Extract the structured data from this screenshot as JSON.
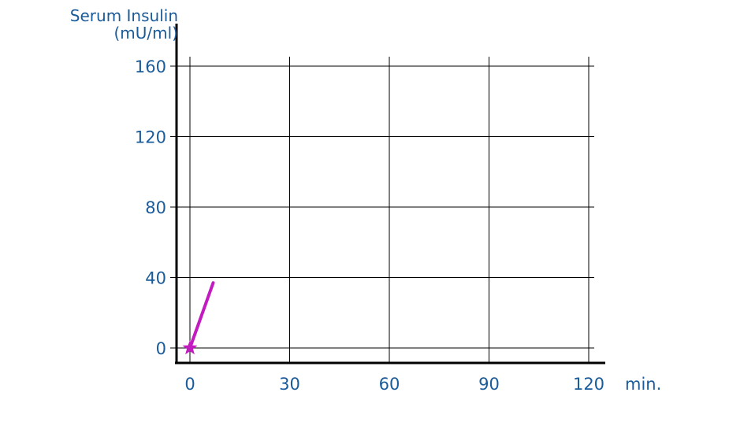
{
  "chart_data": {
    "type": "line",
    "title": "",
    "ylabel_line1": "Serum Insulin",
    "ylabel_line2": "(mU/ml)",
    "xlabel": "min.",
    "x_ticks": [
      0,
      30,
      60,
      90,
      120
    ],
    "y_ticks": [
      0,
      40,
      80,
      120,
      160
    ],
    "xlim": [
      0,
      120
    ],
    "ylim": [
      0,
      160
    ],
    "grid": true,
    "series": [
      {
        "x": [
          0,
          7
        ],
        "y": [
          0,
          37
        ],
        "color": "#c21cc0",
        "marker": "star",
        "marker_points": [
          0
        ]
      }
    ],
    "colors": {
      "text": "#1a5b9a",
      "series": "#c21cc0"
    }
  }
}
